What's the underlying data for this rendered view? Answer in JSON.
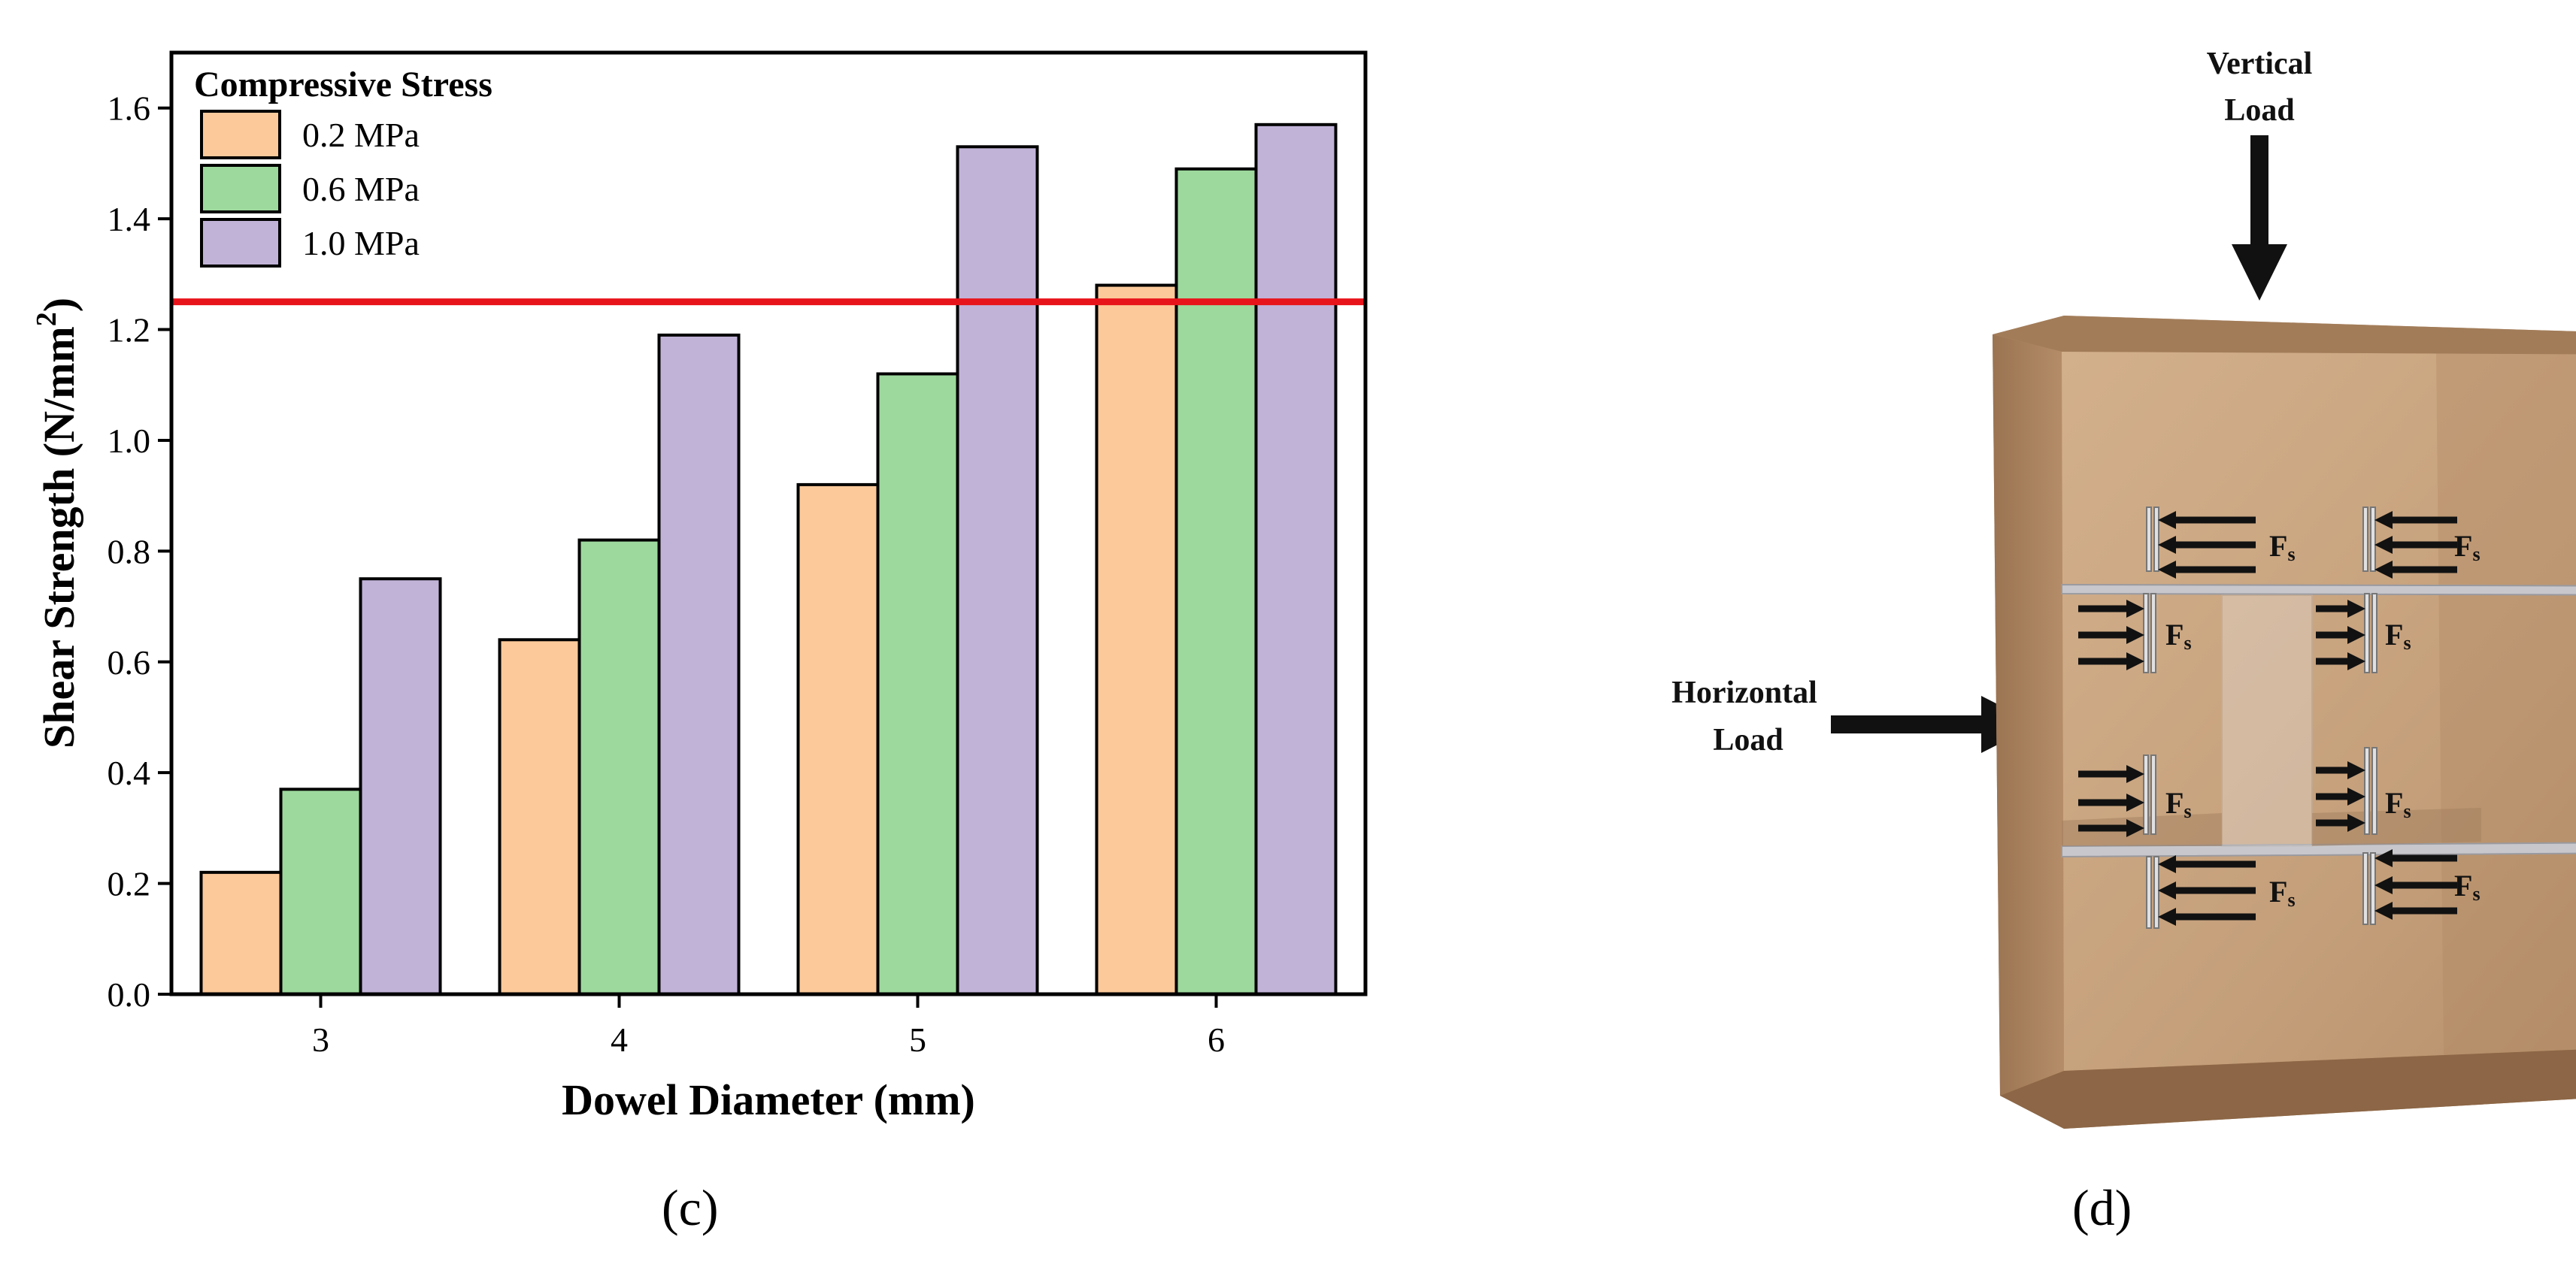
{
  "chart_data": {
    "type": "bar",
    "panel_label": "(c)",
    "xlabel": "Dowel Diameter (mm)",
    "ylabel": "Shear Strength (N/mm",
    "ylabel_sup": "2",
    "ylabel_close": ")",
    "categories": [
      "3",
      "4",
      "5",
      "6"
    ],
    "ylim": [
      0,
      1.7
    ],
    "yticks": [
      "0.0",
      "0.2",
      "0.4",
      "0.6",
      "0.8",
      "1.0",
      "1.2",
      "1.4",
      "1.6"
    ],
    "legend_title": "Compressive Stress",
    "legend_position": "top-left",
    "grid": false,
    "reference_line": {
      "value": 1.25,
      "color": "#e8141b"
    },
    "series": [
      {
        "name": "0.2 MPa",
        "color": "#fbc99a",
        "values": [
          0.22,
          0.64,
          0.92,
          1.28
        ]
      },
      {
        "name": "0.6 MPa",
        "color": "#9dd99d",
        "values": [
          0.37,
          0.82,
          1.12,
          1.49
        ]
      },
      {
        "name": "1.0 MPa",
        "color": "#c1b3d8",
        "values": [
          0.75,
          1.19,
          1.53,
          1.57
        ]
      }
    ]
  },
  "diagram": {
    "panel_label": "(d)",
    "vertical_load_line1": "Vertical",
    "vertical_load_line2": "Load",
    "horizontal_load_line1": "Horizontal",
    "horizontal_load_line2": "Load",
    "force_label": "F",
    "force_sub": "s",
    "colors": {
      "wall": "#b8916c",
      "wall_dark": "#8d6a4b",
      "panel": "#c9a27e",
      "plate": "#c8c8cc",
      "arrow": "#111111"
    }
  }
}
